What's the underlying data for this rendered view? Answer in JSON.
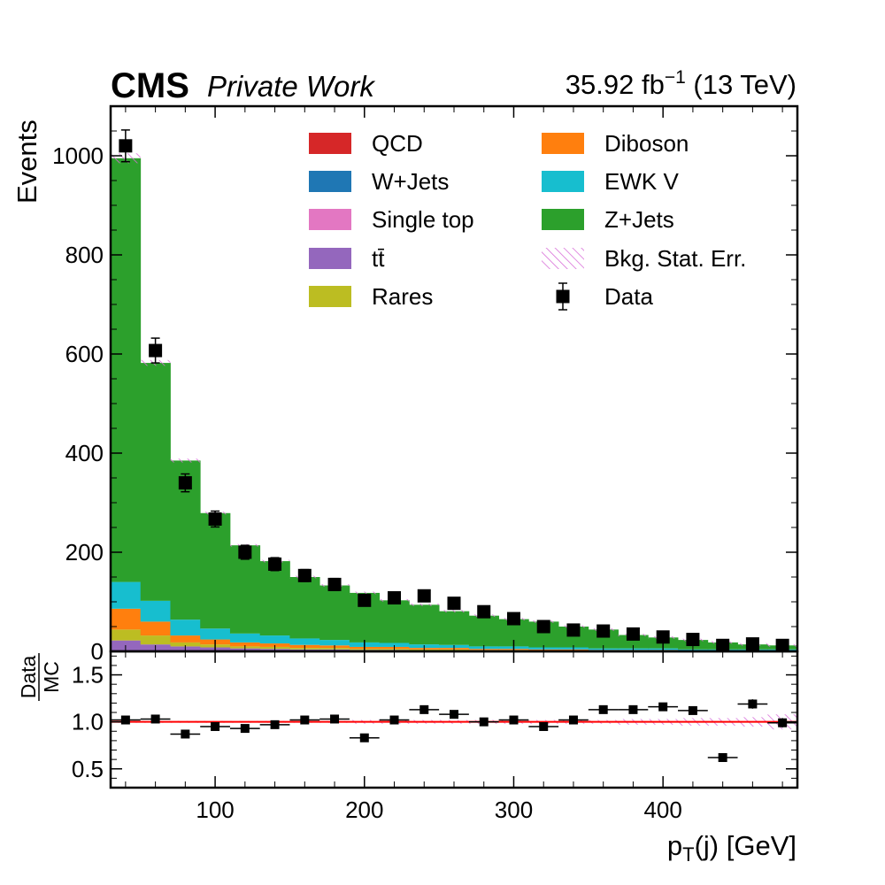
{
  "header": {
    "experiment": "CMS",
    "status": "Private Work",
    "lumi_value": "35.92 fb",
    "lumi_exp": "−1",
    "energy": "(13 TeV)"
  },
  "legend": [
    {
      "name": "QCD",
      "type": "fill",
      "color": "#d62728"
    },
    {
      "name": "W+Jets",
      "type": "fill",
      "color": "#1f77b4"
    },
    {
      "name": "Single top",
      "type": "fill",
      "color": "#e377c2"
    },
    {
      "name": "tt̄",
      "type": "fill",
      "color": "#9467bd"
    },
    {
      "name": "Rares",
      "type": "fill",
      "color": "#bcbd22"
    },
    {
      "name": "Diboson",
      "type": "fill",
      "color": "#ff7f0e"
    },
    {
      "name": "EWK V",
      "type": "fill",
      "color": "#17becf"
    },
    {
      "name": "Z+Jets",
      "type": "fill",
      "color": "#2ca02c"
    },
    {
      "name": "Bkg. Stat. Err.",
      "type": "hatch",
      "color": "#d970d9"
    },
    {
      "name": "Data",
      "type": "marker",
      "color": "#000000"
    }
  ],
  "chart_data": [
    {
      "type": "bar",
      "stacked": true,
      "ylabel": "Events",
      "xlim": [
        30,
        490
      ],
      "ylim": [
        0,
        1100
      ],
      "yticks": [
        0,
        200,
        400,
        600,
        800,
        1000
      ],
      "bin_edges": [
        30,
        50,
        70,
        90,
        110,
        130,
        150,
        170,
        190,
        210,
        230,
        250,
        270,
        290,
        310,
        330,
        350,
        370,
        390,
        410,
        430,
        450,
        470,
        490
      ],
      "series": [
        {
          "name": "tt̄",
          "color": "#9467bd",
          "values": [
            22,
            14,
            10,
            8,
            6,
            5,
            4,
            4,
            3,
            3,
            2,
            2,
            2,
            2,
            1,
            1,
            1,
            1,
            1,
            1,
            1,
            1,
            1
          ]
        },
        {
          "name": "Rares",
          "color": "#bcbd22",
          "values": [
            22,
            18,
            8,
            6,
            4,
            4,
            3,
            3,
            2,
            2,
            2,
            2,
            1,
            1,
            1,
            1,
            1,
            1,
            1,
            0,
            0,
            0,
            0
          ]
        },
        {
          "name": "Diboson",
          "color": "#ff7f0e",
          "values": [
            42,
            28,
            14,
            10,
            8,
            7,
            6,
            5,
            4,
            4,
            3,
            3,
            2,
            2,
            2,
            2,
            1,
            1,
            1,
            1,
            1,
            1,
            1
          ]
        },
        {
          "name": "EWK V",
          "color": "#17becf",
          "values": [
            54,
            42,
            32,
            22,
            18,
            16,
            13,
            11,
            9,
            8,
            7,
            6,
            5,
            5,
            4,
            4,
            3,
            3,
            3,
            2,
            2,
            2,
            2
          ]
        },
        {
          "name": "Z+Jets",
          "color": "#2ca02c",
          "values": [
            855,
            480,
            321,
            233,
            178,
            150,
            124,
            110,
            100,
            86,
            80,
            68,
            62,
            55,
            52,
            42,
            38,
            27,
            22,
            19,
            14,
            10,
            8
          ]
        }
      ],
      "total": [
        995,
        582,
        385,
        279,
        214,
        182,
        150,
        133,
        118,
        103,
        94,
        81,
        72,
        65,
        60,
        50,
        44,
        33,
        28,
        23,
        18,
        14,
        12
      ],
      "data": [
        1020,
        607,
        340,
        267,
        200,
        176,
        153,
        135,
        103,
        108,
        112,
        97,
        80,
        66,
        50,
        43,
        41,
        35,
        29,
        24,
        12,
        15,
        12
      ],
      "data_err": [
        32,
        25,
        18,
        16,
        14,
        13,
        12,
        12,
        10,
        10,
        11,
        10,
        9,
        8,
        7,
        7,
        6,
        6,
        5,
        5,
        3,
        4,
        3
      ]
    },
    {
      "type": "scatter",
      "ylabel_num": "Data",
      "ylabel_den": "MC",
      "xlabel": "p",
      "xlabel_sub": "T",
      "xlabel_rest": "(j) [GeV]",
      "xlim": [
        30,
        490
      ],
      "ylim": [
        0.3,
        1.75
      ],
      "yticks": [
        0.5,
        1.0,
        1.5
      ],
      "xticks": [
        100,
        200,
        300,
        400
      ],
      "reference_line": 1.0,
      "reference_color": "#ff0000",
      "x": [
        40,
        60,
        80,
        100,
        120,
        140,
        160,
        180,
        200,
        220,
        240,
        260,
        280,
        300,
        320,
        340,
        360,
        380,
        400,
        420,
        440,
        460,
        480
      ],
      "y": [
        1.02,
        1.03,
        0.87,
        0.95,
        0.93,
        0.97,
        1.02,
        1.03,
        0.83,
        1.02,
        1.13,
        1.08,
        1.0,
        1.02,
        0.95,
        1.02,
        1.13,
        1.13,
        1.16,
        1.12,
        0.62,
        1.19,
        0.99
      ],
      "yerr": [
        0.02,
        0.02,
        0.02,
        0.02,
        0.02,
        0.02,
        0.02,
        0.02,
        0.02,
        0.02,
        0.02,
        0.02,
        0.02,
        0.02,
        0.02,
        0.02,
        0.02,
        0.02,
        0.03,
        0.03,
        0.03,
        0.05,
        0.05
      ],
      "stat_band": [
        0.01,
        0.01,
        0.01,
        0.01,
        0.01,
        0.01,
        0.01,
        0.01,
        0.02,
        0.02,
        0.02,
        0.02,
        0.02,
        0.02,
        0.02,
        0.02,
        0.02,
        0.03,
        0.03,
        0.04,
        0.04,
        0.05,
        0.08
      ]
    }
  ]
}
